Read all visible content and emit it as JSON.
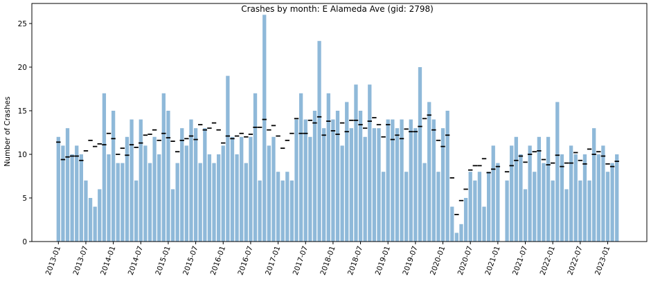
{
  "chart_data": {
    "type": "bar",
    "title": "Crashes by month: E Alameda Ave (gid: 2798)",
    "xlabel": "",
    "ylabel": "Number of Crashes",
    "ylim": [
      0,
      27.3
    ],
    "yticks": [
      0,
      5,
      10,
      15,
      20,
      25
    ],
    "grid": false,
    "bar_color": "#8fb9d9",
    "mean_marker_color": "#000000",
    "x_tick_labels": [
      "2013-01",
      "2013-07",
      "2014-01",
      "2014-07",
      "2015-01",
      "2015-07",
      "2016-01",
      "2016-07",
      "2017-01",
      "2017-07",
      "2018-01",
      "2018-07",
      "2019-01",
      "2019-07",
      "2020-01",
      "2020-07",
      "2021-01",
      "2021-07",
      "2022-01",
      "2022-07",
      "2023-01"
    ],
    "x_tick_every_months": 6,
    "series": [
      {
        "name": "",
        "values": [
          12,
          11,
          13,
          10,
          11,
          10,
          7,
          5,
          4,
          6,
          17,
          10,
          15,
          9,
          9,
          12,
          14,
          7,
          14,
          11,
          9,
          12,
          10,
          17,
          15,
          6,
          9,
          13,
          11,
          14,
          13,
          9,
          13,
          10,
          9,
          10,
          11,
          19,
          12,
          10,
          12,
          9,
          12,
          17,
          7,
          26,
          11,
          12,
          8,
          7,
          8,
          7,
          14,
          17,
          14,
          12,
          15,
          23,
          13,
          17,
          14,
          15,
          11,
          16,
          13,
          18,
          15,
          12,
          18,
          13,
          13,
          8,
          14,
          14,
          13,
          14,
          8,
          14,
          13,
          20,
          9,
          16,
          14,
          8,
          13,
          15,
          4,
          1,
          2,
          5,
          8,
          7,
          8,
          4,
          8,
          11,
          9,
          0,
          7,
          11,
          12,
          10,
          6,
          11,
          8,
          12,
          9,
          12,
          7,
          16,
          10,
          6,
          11,
          10,
          7,
          10,
          7,
          13,
          10,
          11,
          8,
          9,
          10
        ]
      },
      {
        "name": "",
        "type": "marker",
        "values": [
          11.4,
          9.4,
          9.7,
          9.8,
          9.8,
          9.3,
          10.4,
          11.6,
          10.9,
          11.2,
          11.1,
          12.4,
          11.8,
          10.0,
          10.7,
          9.9,
          11.1,
          10.8,
          11.3,
          12.2,
          12.3,
          12.8,
          11.6,
          12.4,
          11.9,
          11.5,
          10.3,
          11.6,
          11.8,
          12.1,
          11.7,
          13.4,
          12.8,
          13.0,
          13.6,
          12.8,
          11.3,
          12.1,
          11.8,
          12.1,
          12.4,
          12.0,
          12.3,
          13.1,
          13.1,
          14.0,
          12.8,
          13.3,
          12.1,
          10.7,
          11.6,
          12.4,
          14.1,
          12.4,
          12.4,
          13.9,
          13.6,
          14.3,
          12.2,
          13.8,
          12.7,
          12.3,
          13.6,
          12.6,
          13.9,
          13.9,
          13.4,
          13.0,
          13.8,
          14.2,
          13.4,
          12.0,
          13.4,
          11.7,
          12.2,
          11.8,
          12.9,
          12.6,
          12.6,
          13.2,
          14.1,
          14.5,
          12.8,
          11.6,
          10.9,
          12.2,
          7.3,
          3.1,
          4.7,
          6.0,
          8.2,
          8.7,
          8.7,
          9.5,
          7.9,
          8.3,
          8.6,
          null,
          8.0,
          8.7,
          9.3,
          9.8,
          9.1,
          10.0,
          10.3,
          10.4,
          9.4,
          8.8,
          9.0,
          9.9,
          8.6,
          9.0,
          9.0,
          10.2,
          9.3,
          8.9,
          10.6,
          10.0,
          10.3,
          9.8,
          8.9,
          8.6,
          9.2
        ]
      }
    ]
  }
}
